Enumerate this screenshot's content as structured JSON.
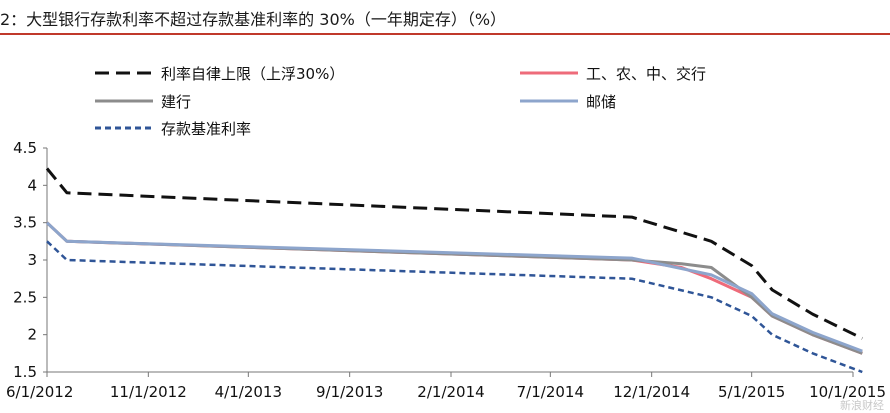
{
  "title": "2：大型银行存款利率不超过存款基准利率的 30%（一年期定存）（%）",
  "watermark": "新浪财经",
  "chart_data": {
    "type": "line",
    "title": "2：大型银行存款利率不超过存款基准利率的 30%（一年期定存）（%）",
    "xlabel": "",
    "ylabel": "",
    "x_tick_labels": [
      "6/1/2012",
      "11/1/2012",
      "4/1/2013",
      "9/1/2013",
      "2/1/2014",
      "7/1/2014",
      "12/1/2014",
      "5/1/2015",
      "10/1/2015"
    ],
    "ylim": [
      1.5,
      4.5
    ],
    "y_ticks": [
      1.5,
      2,
      2.5,
      3,
      3.5,
      4,
      4.5
    ],
    "y_tick_labels": [
      "1.5",
      "2",
      "2.5",
      "3",
      "3.5",
      "4",
      "4.5"
    ],
    "grid": false,
    "legend": "top",
    "series": [
      {
        "name": "利率自律上限（上浮30%）",
        "color": "#111111",
        "style": "long-dash",
        "points": [
          [
            "2012-06-01",
            4.225
          ],
          [
            "2012-07-01",
            3.9
          ],
          [
            "2014-11-01",
            3.575
          ],
          [
            "2015-03-01",
            3.25
          ],
          [
            "2015-05-01",
            2.925
          ],
          [
            "2015-06-01",
            2.6
          ],
          [
            "2015-08-01",
            2.275
          ],
          [
            "2015-10-15",
            1.95
          ]
        ]
      },
      {
        "name": "工、农、中、交行",
        "color": "#ee6b7a",
        "style": "solid",
        "points": [
          [
            "2012-06-01",
            3.5
          ],
          [
            "2012-07-01",
            3.25
          ],
          [
            "2014-11-01",
            3.0
          ],
          [
            "2015-01-15",
            2.9
          ],
          [
            "2015-03-01",
            2.75
          ],
          [
            "2015-05-01",
            2.5
          ],
          [
            "2015-06-01",
            2.25
          ],
          [
            "2015-08-01",
            2.0
          ],
          [
            "2015-10-15",
            1.75
          ]
        ]
      },
      {
        "name": "建行",
        "color": "#8c8c8c",
        "style": "solid",
        "points": [
          [
            "2012-06-01",
            3.5
          ],
          [
            "2012-07-01",
            3.25
          ],
          [
            "2014-11-01",
            3.0
          ],
          [
            "2015-01-15",
            2.95
          ],
          [
            "2015-03-01",
            2.9
          ],
          [
            "2015-05-01",
            2.5
          ],
          [
            "2015-06-01",
            2.25
          ],
          [
            "2015-08-01",
            2.0
          ],
          [
            "2015-10-15",
            1.75
          ]
        ]
      },
      {
        "name": "邮储",
        "color": "#8da5cc",
        "style": "solid",
        "points": [
          [
            "2012-06-01",
            3.5
          ],
          [
            "2012-07-01",
            3.25
          ],
          [
            "2014-11-01",
            3.025
          ],
          [
            "2015-03-01",
            2.8
          ],
          [
            "2015-05-01",
            2.55
          ],
          [
            "2015-06-01",
            2.28
          ],
          [
            "2015-08-01",
            2.03
          ],
          [
            "2015-10-15",
            1.78
          ]
        ]
      },
      {
        "name": "存款基准利率",
        "color": "#2f5597",
        "style": "short-dash",
        "points": [
          [
            "2012-06-01",
            3.25
          ],
          [
            "2012-07-01",
            3.0
          ],
          [
            "2014-11-01",
            2.75
          ],
          [
            "2015-03-01",
            2.5
          ],
          [
            "2015-05-01",
            2.25
          ],
          [
            "2015-06-01",
            2.0
          ],
          [
            "2015-08-01",
            1.75
          ],
          [
            "2015-10-15",
            1.5
          ]
        ]
      }
    ]
  }
}
